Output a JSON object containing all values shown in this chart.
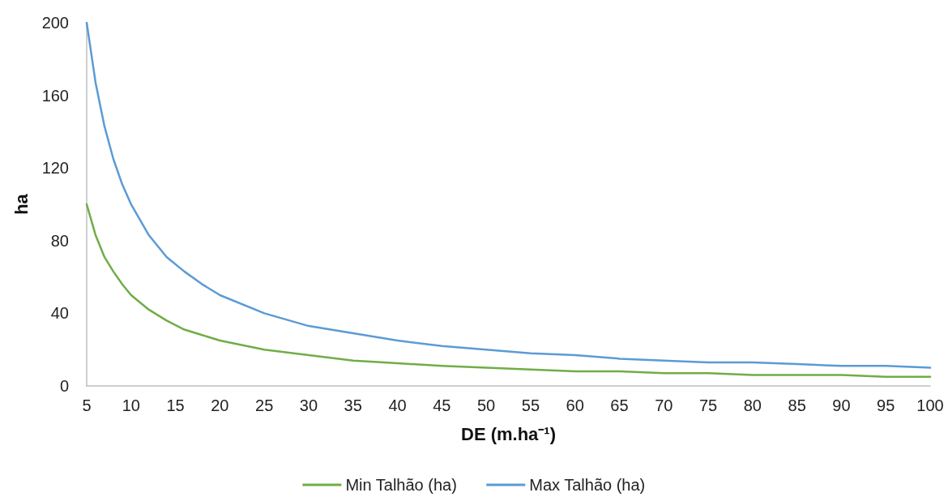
{
  "chart_data": {
    "type": "line",
    "xlabel": "DE (m.ha⁻¹)",
    "ylabel": "ha",
    "x": [
      5,
      6,
      7,
      8,
      9,
      10,
      12,
      14,
      16,
      18,
      20,
      25,
      30,
      35,
      40,
      45,
      50,
      55,
      60,
      65,
      70,
      75,
      80,
      85,
      90,
      95,
      100
    ],
    "xlim": [
      5,
      100
    ],
    "xticks": [
      5,
      10,
      15,
      20,
      25,
      30,
      35,
      40,
      45,
      50,
      55,
      60,
      65,
      70,
      75,
      80,
      85,
      90,
      95,
      100
    ],
    "ylim": [
      0,
      200
    ],
    "yticks": [
      0,
      40,
      80,
      120,
      160,
      200
    ],
    "series": [
      {
        "name": "Min Talhão (ha)",
        "color": "#70ad47",
        "values": [
          100,
          83,
          71,
          63,
          56,
          50,
          42,
          36,
          31,
          28,
          25,
          20,
          17,
          14,
          12.5,
          11,
          10,
          9,
          8,
          8,
          7,
          7,
          6,
          6,
          6,
          5,
          5
        ]
      },
      {
        "name": "Max Talhão (ha)",
        "color": "#5b9bd5",
        "values": [
          200,
          167,
          143,
          125,
          111,
          100,
          83,
          71,
          63,
          56,
          50,
          40,
          33,
          29,
          25,
          22,
          20,
          18,
          17,
          15,
          14,
          13,
          13,
          12,
          11,
          11,
          10
        ]
      }
    ],
    "grid": false,
    "legend": "bottom",
    "marker": "none",
    "line_style": "solid"
  }
}
